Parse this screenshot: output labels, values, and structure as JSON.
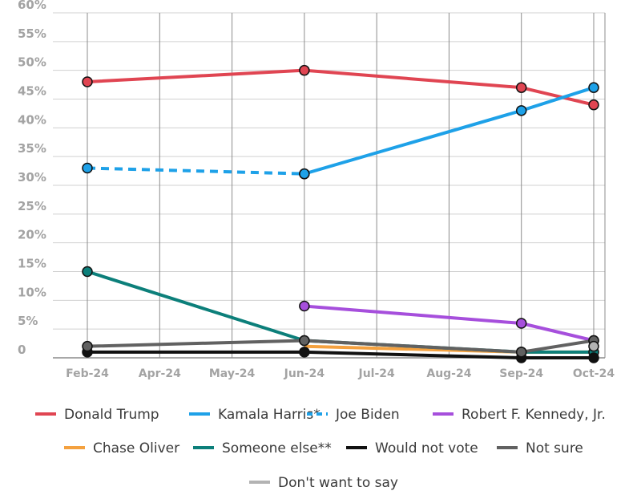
{
  "chart_data": {
    "type": "line",
    "title": "",
    "xlabel": "",
    "ylabel": "",
    "x": [
      "Feb-24",
      "Apr-24",
      "May-24",
      "Jun-24",
      "Jul-24",
      "Aug-24",
      "Sep-24",
      "Oct-24"
    ],
    "yticks": [
      "0",
      "5%",
      "10%",
      "15%",
      "20%",
      "25%",
      "30%",
      "35%",
      "40%",
      "45%",
      "50%",
      "55%",
      "60%"
    ],
    "ylim": [
      0,
      60
    ],
    "grid": true,
    "legend_position": "bottom",
    "series": [
      {
        "name": "Donald Trump",
        "color": "#e04552",
        "dashed": false,
        "markers": true,
        "points": [
          {
            "x": "Feb-24",
            "y": 48
          },
          {
            "x": "Jun-24",
            "y": 50
          },
          {
            "x": "Sep-24",
            "y": 47
          },
          {
            "x": "Oct-24",
            "y": 44
          }
        ]
      },
      {
        "name": "Kamala Harris*",
        "color": "#1ea1e8",
        "dashed": false,
        "markers": true,
        "points": [
          {
            "x": "Jun-24",
            "y": 32
          },
          {
            "x": "Sep-24",
            "y": 43
          },
          {
            "x": "Oct-24",
            "y": 47
          }
        ]
      },
      {
        "name": "Joe Biden",
        "color": "#1ea1e8",
        "dashed": true,
        "markers": true,
        "points": [
          {
            "x": "Feb-24",
            "y": 33
          },
          {
            "x": "Jun-24",
            "y": 32
          }
        ]
      },
      {
        "name": "Robert F. Kennedy, Jr.",
        "color": "#a64fdc",
        "dashed": false,
        "markers": true,
        "points": [
          {
            "x": "Jun-24",
            "y": 9
          },
          {
            "x": "Sep-24",
            "y": 6
          },
          {
            "x": "Oct-24",
            "y": 3
          }
        ]
      },
      {
        "name": "Chase Oliver",
        "color": "#f4a13f",
        "dashed": false,
        "markers": false,
        "points": [
          {
            "x": "Jun-24",
            "y": 2
          },
          {
            "x": "Sep-24",
            "y": 1
          },
          {
            "x": "Oct-24",
            "y": 1
          }
        ]
      },
      {
        "name": "Someone else**",
        "color": "#0c7f7a",
        "dashed": false,
        "markers": true,
        "points": [
          {
            "x": "Feb-24",
            "y": 15
          },
          {
            "x": "Jun-24",
            "y": 3
          },
          {
            "x": "Sep-24",
            "y": 1
          },
          {
            "x": "Oct-24",
            "y": 1
          }
        ]
      },
      {
        "name": "Would not vote",
        "color": "#111111",
        "dashed": false,
        "markers": true,
        "points": [
          {
            "x": "Feb-24",
            "y": 1
          },
          {
            "x": "Jun-24",
            "y": 1
          },
          {
            "x": "Sep-24",
            "y": 0
          },
          {
            "x": "Oct-24",
            "y": 0
          }
        ]
      },
      {
        "name": "Not sure",
        "color": "#616161",
        "dashed": false,
        "markers": true,
        "points": [
          {
            "x": "Feb-24",
            "y": 2
          },
          {
            "x": "Jun-24",
            "y": 3
          },
          {
            "x": "Sep-24",
            "y": 1
          },
          {
            "x": "Oct-24",
            "y": 3
          }
        ]
      },
      {
        "name": "Don't want to say",
        "color": "#b3b3b3",
        "dashed": false,
        "markers": true,
        "points": [
          {
            "x": "Oct-24",
            "y": 2
          }
        ]
      }
    ]
  }
}
